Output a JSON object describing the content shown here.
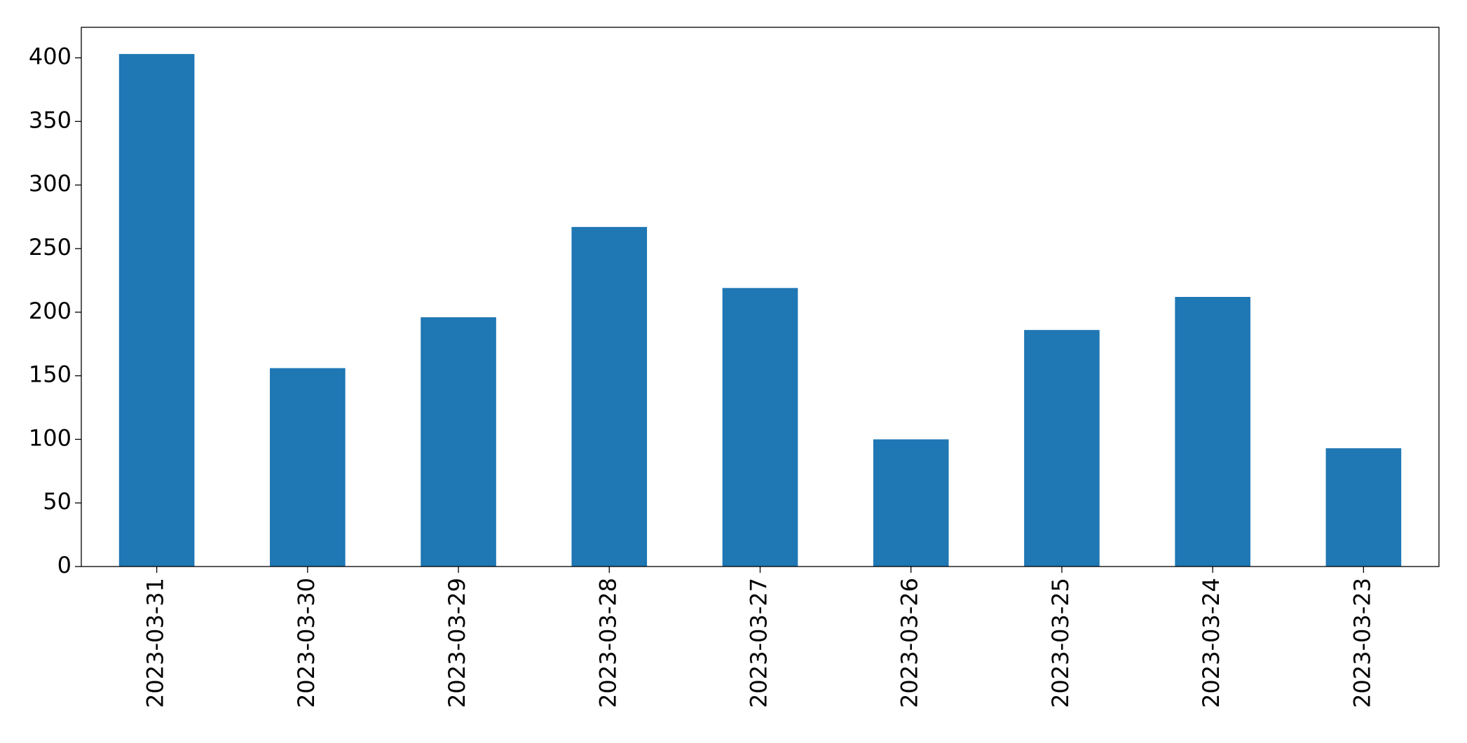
{
  "chart_data": {
    "type": "bar",
    "categories": [
      "2023-03-31",
      "2023-03-30",
      "2023-03-29",
      "2023-03-28",
      "2023-03-27",
      "2023-03-26",
      "2023-03-25",
      "2023-03-24",
      "2023-03-23"
    ],
    "values": [
      403,
      156,
      196,
      267,
      219,
      100,
      186,
      212,
      93
    ],
    "color": "#1f77b4",
    "ylim": [
      0,
      424
    ],
    "yticks": [
      0,
      50,
      100,
      150,
      200,
      250,
      300,
      350,
      400
    ],
    "grid": false
  }
}
